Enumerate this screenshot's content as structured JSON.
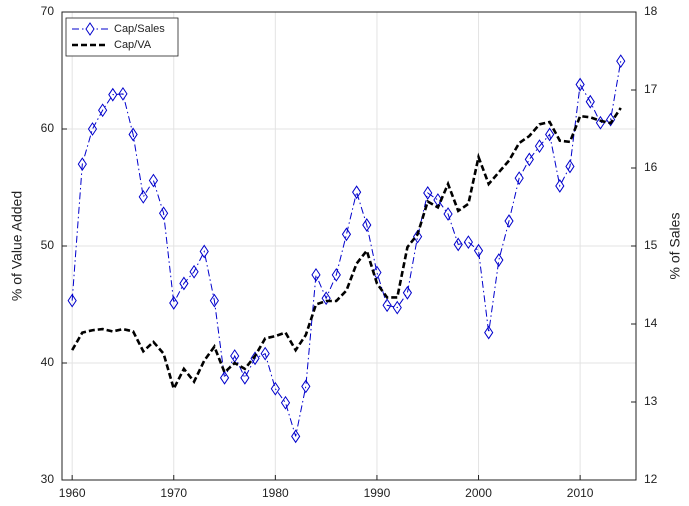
{
  "chart_data": {
    "type": "line",
    "x": [
      1960,
      1961,
      1962,
      1963,
      1964,
      1965,
      1966,
      1967,
      1968,
      1969,
      1970,
      1971,
      1972,
      1973,
      1974,
      1975,
      1976,
      1977,
      1978,
      1979,
      1980,
      1981,
      1982,
      1983,
      1984,
      1985,
      1986,
      1987,
      1988,
      1989,
      1990,
      1991,
      1992,
      1993,
      1994,
      1995,
      1996,
      1997,
      1998,
      1999,
      2000,
      2001,
      2002,
      2003,
      2004,
      2005,
      2006,
      2007,
      2008,
      2009,
      2010,
      2011,
      2012,
      2013,
      2014
    ],
    "series": [
      {
        "name": "Cap/Sales",
        "color": "#0000cc",
        "axis": "y2",
        "marker": "diamond",
        "values": [
          14.3,
          16.05,
          16.5,
          16.74,
          16.94,
          16.95,
          16.43,
          15.63,
          15.84,
          15.42,
          14.27,
          14.52,
          14.67,
          14.93,
          14.3,
          13.31,
          13.59,
          13.31,
          13.56,
          13.62,
          13.17,
          12.99,
          12.56,
          13.2,
          14.63,
          14.33,
          14.63,
          15.15,
          15.69,
          15.27,
          14.66,
          14.24,
          14.21,
          14.4,
          15.12,
          15.68,
          15.59,
          15.41,
          15.02,
          15.05,
          14.94,
          13.89,
          14.82,
          15.32,
          15.87,
          16.11,
          16.28,
          16.43,
          15.77,
          16.02,
          17.07,
          16.85,
          16.58,
          16.62,
          17.37
        ]
      },
      {
        "name": "Cap/VA",
        "color": "#000000",
        "axis": "y",
        "values": [
          41.1,
          42.6,
          42.8,
          42.9,
          42.7,
          42.9,
          42.7,
          41,
          41.8,
          40.8,
          37.8,
          39.5,
          38.4,
          40.2,
          41.4,
          39.2,
          40,
          39.5,
          40.6,
          42.1,
          42.3,
          42.6,
          41.1,
          42.4,
          45,
          45.3,
          45.3,
          46.2,
          48.5,
          49.6,
          46.8,
          45.6,
          45.6,
          49.9,
          51,
          53.8,
          53.3,
          55.3,
          53,
          53.6,
          57.6,
          55.3,
          56.3,
          57.3,
          58.8,
          59.4,
          60.4,
          60.6,
          59,
          58.9,
          61.1,
          61,
          60.7,
          60.5,
          61.8
        ]
      }
    ],
    "y_label": "% of Value Added",
    "y2_label": "% of Sales",
    "xlim": [
      1959,
      2015.5
    ],
    "xticks": [
      1960,
      1970,
      1980,
      1990,
      2000,
      2010
    ],
    "ylim": [
      30,
      70
    ],
    "yticks": [
      30,
      40,
      50,
      60,
      70
    ],
    "y2lim": [
      12,
      18
    ],
    "y2ticks": [
      12,
      13,
      14,
      15,
      16,
      17,
      18
    ],
    "grid": true,
    "legend": "upper left"
  }
}
